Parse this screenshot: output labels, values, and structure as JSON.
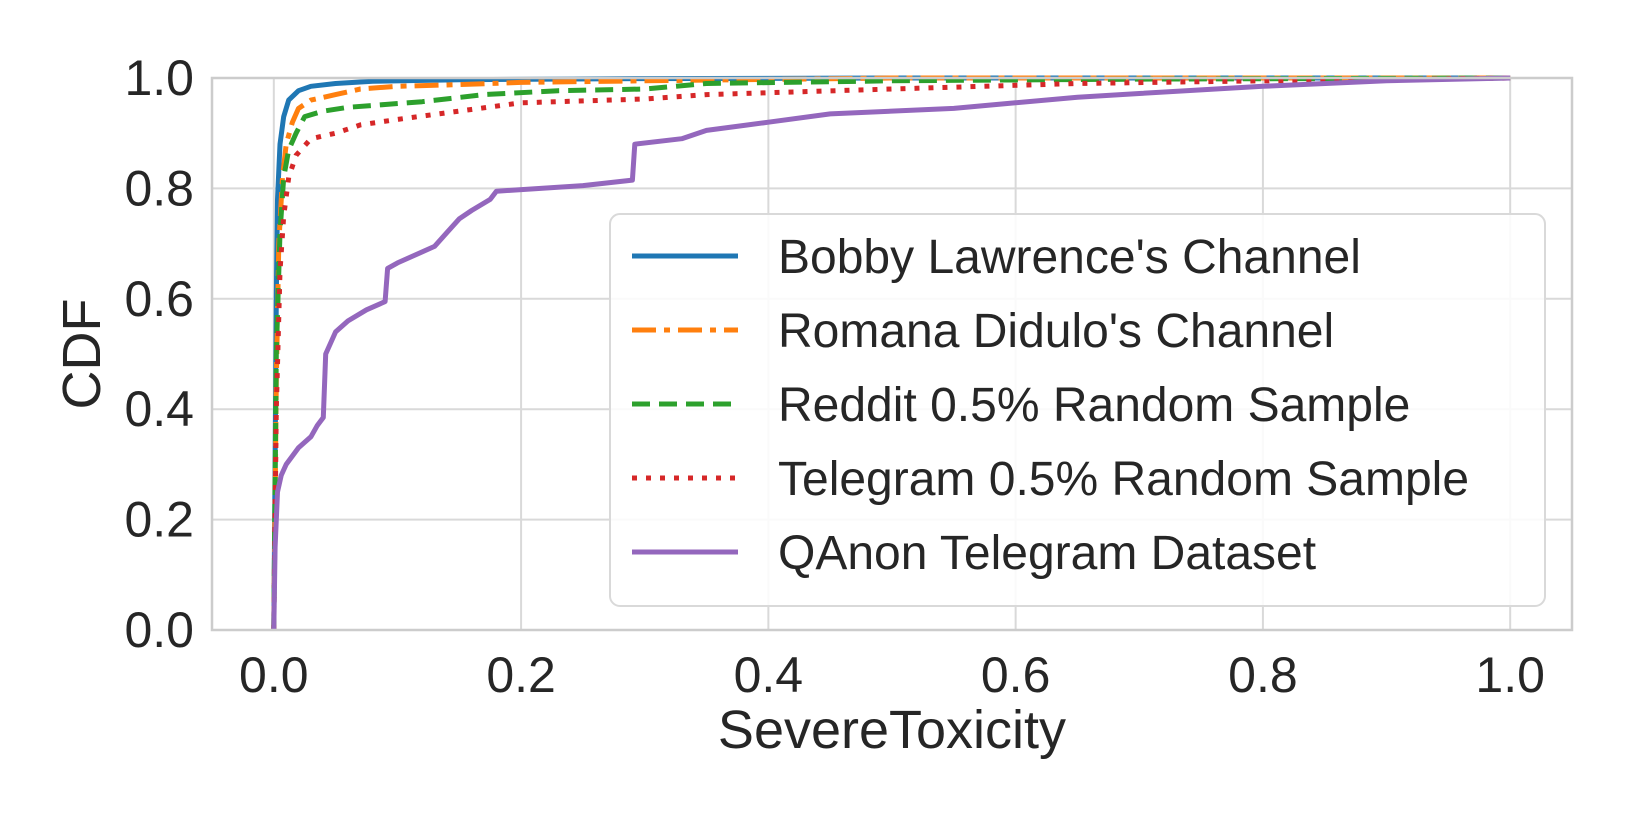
{
  "chart_data": {
    "type": "line",
    "title": "",
    "xlabel": "SevereToxicity",
    "ylabel": "CDF",
    "xlim": [
      -0.05,
      1.05
    ],
    "ylim": [
      0.0,
      1.0
    ],
    "grid": true,
    "legend_position": "lower-right",
    "x_ticks": [
      {
        "value": 0.0,
        "label": "0.0"
      },
      {
        "value": 0.2,
        "label": "0.2"
      },
      {
        "value": 0.4,
        "label": "0.4"
      },
      {
        "value": 0.6,
        "label": "0.6"
      },
      {
        "value": 0.8,
        "label": "0.8"
      },
      {
        "value": 1.0,
        "label": "1.0"
      }
    ],
    "y_ticks": [
      {
        "value": 0.0,
        "label": "0.0"
      },
      {
        "value": 0.2,
        "label": "0.2"
      },
      {
        "value": 0.4,
        "label": "0.4"
      },
      {
        "value": 0.6,
        "label": "0.6"
      },
      {
        "value": 0.8,
        "label": "0.8"
      },
      {
        "value": 1.0,
        "label": "1.0"
      }
    ],
    "series": [
      {
        "name": "Bobby Lawrence's Channel",
        "color": "#1f77b4",
        "style": "solid",
        "x": [
          0.0,
          0.001,
          0.002,
          0.003,
          0.005,
          0.008,
          0.012,
          0.02,
          0.03,
          0.05,
          0.08,
          0.15,
          0.3,
          0.5,
          1.0
        ],
        "y": [
          0.0,
          0.3,
          0.6,
          0.78,
          0.88,
          0.93,
          0.96,
          0.977,
          0.985,
          0.99,
          0.994,
          0.997,
          0.999,
          1.0,
          1.0
        ]
      },
      {
        "name": "Romana Didulo's Channel",
        "color": "#ff7f0e",
        "style": "dashdot",
        "x": [
          0.0,
          0.002,
          0.004,
          0.007,
          0.01,
          0.015,
          0.02,
          0.03,
          0.05,
          0.07,
          0.1,
          0.15,
          0.2,
          0.3,
          0.5,
          1.0
        ],
        "y": [
          0.0,
          0.45,
          0.7,
          0.82,
          0.88,
          0.92,
          0.945,
          0.96,
          0.97,
          0.98,
          0.985,
          0.988,
          0.992,
          0.995,
          1.0,
          1.0
        ]
      },
      {
        "name": "Reddit 0.5% Random Sample",
        "color": "#2ca02c",
        "style": "dashed",
        "x": [
          0.0,
          0.002,
          0.005,
          0.008,
          0.012,
          0.018,
          0.025,
          0.04,
          0.06,
          0.09,
          0.12,
          0.17,
          0.23,
          0.3,
          0.35,
          0.5,
          0.7,
          1.0
        ],
        "y": [
          0.0,
          0.5,
          0.72,
          0.82,
          0.87,
          0.9,
          0.93,
          0.94,
          0.947,
          0.952,
          0.957,
          0.97,
          0.977,
          0.98,
          0.99,
          0.995,
          0.998,
          1.0
        ]
      },
      {
        "name": "Telegram 0.5% Random Sample",
        "color": "#d62728",
        "style": "dotted",
        "x": [
          0.0,
          0.002,
          0.005,
          0.008,
          0.012,
          0.018,
          0.03,
          0.05,
          0.07,
          0.1,
          0.15,
          0.2,
          0.3,
          0.35,
          0.5,
          0.65,
          0.8,
          1.0
        ],
        "y": [
          0.0,
          0.4,
          0.65,
          0.75,
          0.82,
          0.86,
          0.89,
          0.9,
          0.915,
          0.925,
          0.94,
          0.955,
          0.962,
          0.97,
          0.98,
          0.99,
          0.995,
          1.0
        ]
      },
      {
        "name": "QAnon Telegram Dataset",
        "color": "#9467bd",
        "style": "solid",
        "x": [
          0.0,
          0.001,
          0.003,
          0.006,
          0.01,
          0.02,
          0.03,
          0.035,
          0.04,
          0.042,
          0.05,
          0.06,
          0.075,
          0.09,
          0.092,
          0.1,
          0.13,
          0.14,
          0.15,
          0.16,
          0.175,
          0.18,
          0.25,
          0.29,
          0.292,
          0.33,
          0.35,
          0.4,
          0.45,
          0.55,
          0.6,
          0.65,
          0.7,
          0.8,
          0.9,
          1.0
        ],
        "y": [
          0.0,
          0.15,
          0.25,
          0.28,
          0.3,
          0.33,
          0.35,
          0.37,
          0.385,
          0.5,
          0.54,
          0.56,
          0.58,
          0.595,
          0.655,
          0.665,
          0.695,
          0.72,
          0.745,
          0.76,
          0.78,
          0.795,
          0.805,
          0.815,
          0.88,
          0.89,
          0.905,
          0.92,
          0.935,
          0.945,
          0.955,
          0.965,
          0.972,
          0.985,
          0.995,
          1.0
        ]
      }
    ]
  }
}
